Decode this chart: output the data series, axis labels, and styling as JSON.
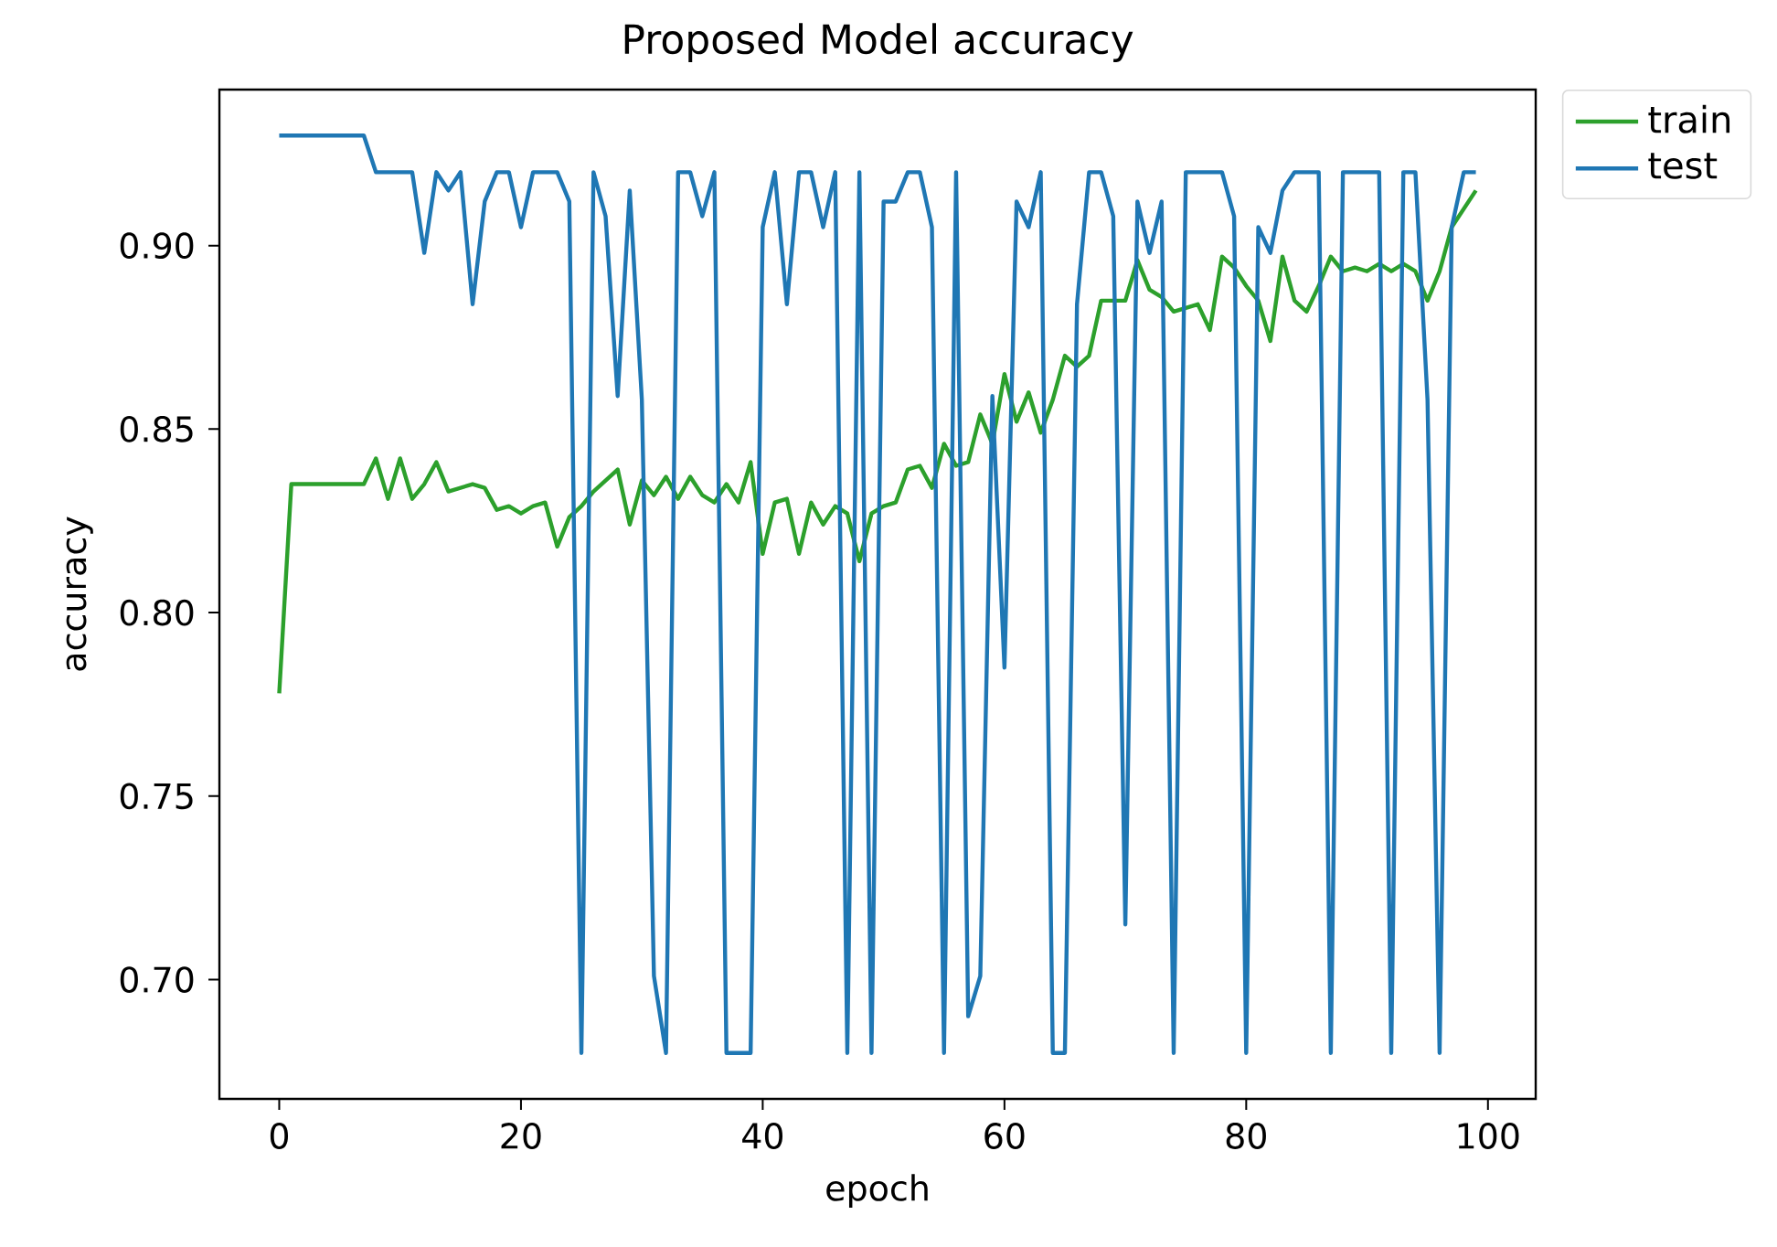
{
  "chart_data": {
    "type": "line",
    "title": "Proposed Model accuracy",
    "xlabel": "epoch",
    "ylabel": "accuracy",
    "x": [
      0,
      1,
      2,
      3,
      4,
      5,
      6,
      7,
      8,
      9,
      10,
      11,
      12,
      13,
      14,
      15,
      16,
      17,
      18,
      19,
      20,
      21,
      22,
      23,
      24,
      25,
      26,
      27,
      28,
      29,
      30,
      31,
      32,
      33,
      34,
      35,
      36,
      37,
      38,
      39,
      40,
      41,
      42,
      43,
      44,
      45,
      46,
      47,
      48,
      49,
      50,
      51,
      52,
      53,
      54,
      55,
      56,
      57,
      58,
      59,
      60,
      61,
      62,
      63,
      64,
      65,
      66,
      67,
      68,
      69,
      70,
      71,
      72,
      73,
      74,
      75,
      76,
      77,
      78,
      79,
      80,
      81,
      82,
      83,
      84,
      85,
      86,
      87,
      88,
      89,
      90,
      91,
      92,
      93,
      94,
      95,
      96,
      97,
      98,
      99
    ],
    "series": [
      {
        "name": "train",
        "color": "#2ca02c",
        "values": [
          0.778,
          0.835,
          0.835,
          0.835,
          0.835,
          0.835,
          0.835,
          0.835,
          0.842,
          0.831,
          0.842,
          0.831,
          0.835,
          0.841,
          0.833,
          0.834,
          0.835,
          0.834,
          0.828,
          0.829,
          0.827,
          0.829,
          0.83,
          0.818,
          0.826,
          0.829,
          0.833,
          0.836,
          0.839,
          0.824,
          0.836,
          0.832,
          0.837,
          0.831,
          0.837,
          0.832,
          0.83,
          0.835,
          0.83,
          0.841,
          0.816,
          0.83,
          0.831,
          0.816,
          0.83,
          0.824,
          0.829,
          0.827,
          0.814,
          0.827,
          0.829,
          0.83,
          0.839,
          0.84,
          0.834,
          0.846,
          0.84,
          0.841,
          0.854,
          0.846,
          0.865,
          0.852,
          0.86,
          0.849,
          0.858,
          0.87,
          0.867,
          0.87,
          0.885,
          0.885,
          0.885,
          0.896,
          0.888,
          0.886,
          0.882,
          0.883,
          0.884,
          0.877,
          0.897,
          0.894,
          0.889,
          0.885,
          0.874,
          0.897,
          0.885,
          0.882,
          0.889,
          0.897,
          0.893,
          0.894,
          0.893,
          0.895,
          0.893,
          0.895,
          0.893,
          0.885,
          0.893,
          0.905,
          0.91,
          0.915
        ]
      },
      {
        "name": "test",
        "color": "#1f77b4",
        "values": [
          0.93,
          0.93,
          0.93,
          0.93,
          0.93,
          0.93,
          0.93,
          0.93,
          0.92,
          0.92,
          0.92,
          0.92,
          0.898,
          0.92,
          0.915,
          0.92,
          0.884,
          0.912,
          0.92,
          0.92,
          0.905,
          0.92,
          0.92,
          0.92,
          0.912,
          0.68,
          0.92,
          0.908,
          0.859,
          0.915,
          0.858,
          0.701,
          0.68,
          0.92,
          0.92,
          0.908,
          0.92,
          0.68,
          0.68,
          0.68,
          0.905,
          0.92,
          0.884,
          0.92,
          0.92,
          0.905,
          0.92,
          0.68,
          0.92,
          0.68,
          0.912,
          0.912,
          0.92,
          0.92,
          0.905,
          0.68,
          0.92,
          0.69,
          0.701,
          0.859,
          0.785,
          0.912,
          0.905,
          0.92,
          0.68,
          0.68,
          0.884,
          0.92,
          0.92,
          0.908,
          0.715,
          0.912,
          0.898,
          0.912,
          0.68,
          0.92,
          0.92,
          0.92,
          0.92,
          0.908,
          0.68,
          0.905,
          0.898,
          0.915,
          0.92,
          0.92,
          0.92,
          0.68,
          0.92,
          0.92,
          0.92,
          0.92,
          0.68,
          0.92,
          0.92,
          0.858,
          0.68,
          0.905,
          0.92,
          0.92
        ]
      }
    ],
    "xlim": [
      -4.95,
      103.95
    ],
    "ylim": [
      0.6675,
      0.9425
    ],
    "xticks": [
      0,
      20,
      40,
      60,
      80,
      100
    ],
    "yticks": [
      {
        "value": 0.7,
        "label": "0.70"
      },
      {
        "value": 0.75,
        "label": "0.75"
      },
      {
        "value": 0.8,
        "label": "0.80"
      },
      {
        "value": 0.85,
        "label": "0.85"
      },
      {
        "value": 0.9,
        "label": "0.90"
      }
    ],
    "legend": "top right",
    "marker": "none",
    "line_style": "solid"
  }
}
